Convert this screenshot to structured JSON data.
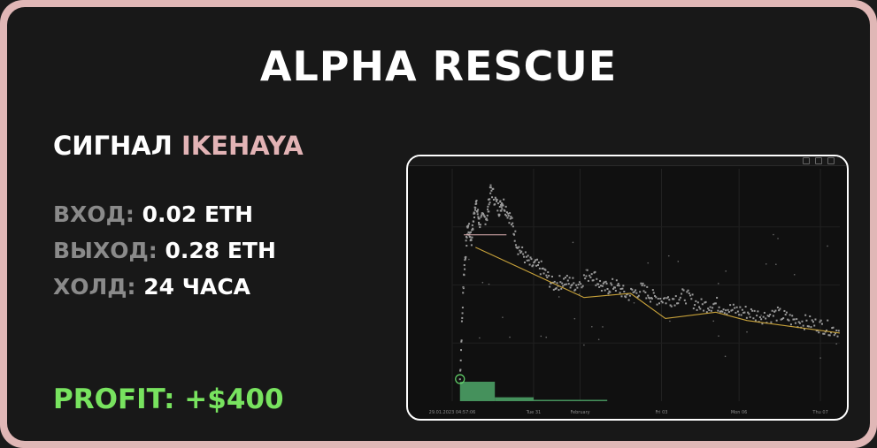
{
  "title": "ALPHA RESCUE",
  "signal": {
    "prefix": "СИГНАЛ",
    "name": "IKEHAYA"
  },
  "stats": [
    {
      "key": "ВХОД:",
      "value": "0.02 ETH"
    },
    {
      "key": "ВЫХОД:",
      "value": "0.28 ETH"
    },
    {
      "key": "ХОЛД:",
      "value": "24 ЧАСА"
    }
  ],
  "profit": "PROFIT: +$400",
  "colors": {
    "accent_pink": "#e2b3b5",
    "profit_green": "#78e35f",
    "price_gray": "#9a9a9a",
    "ma_yellow": "#c8a23a",
    "volume_green": "#4fa86a",
    "buy_marker": "#62d46a"
  },
  "chart_data": {
    "type": "scatter",
    "x_tick_labels": [
      "29.01.2023 04:57:06",
      "Tue 31",
      "February",
      "Fri 03",
      "Mon 06",
      "Thu 07"
    ],
    "x_tick_positions": [
      0,
      0.21,
      0.33,
      0.54,
      0.74,
      0.95
    ],
    "price_series": {
      "points_relative": [
        [
          0.02,
          0.05
        ],
        [
          0.03,
          0.55
        ],
        [
          0.04,
          0.78
        ],
        [
          0.05,
          0.72
        ],
        [
          0.06,
          0.9
        ],
        [
          0.07,
          0.8
        ],
        [
          0.09,
          0.83
        ],
        [
          0.1,
          0.96
        ],
        [
          0.12,
          0.86
        ],
        [
          0.13,
          0.9
        ],
        [
          0.15,
          0.82
        ],
        [
          0.17,
          0.68
        ],
        [
          0.2,
          0.6
        ],
        [
          0.23,
          0.58
        ],
        [
          0.26,
          0.5
        ],
        [
          0.29,
          0.52
        ],
        [
          0.32,
          0.5
        ],
        [
          0.36,
          0.56
        ],
        [
          0.39,
          0.48
        ],
        [
          0.42,
          0.5
        ],
        [
          0.45,
          0.45
        ],
        [
          0.49,
          0.48
        ],
        [
          0.52,
          0.44
        ],
        [
          0.56,
          0.43
        ],
        [
          0.6,
          0.45
        ],
        [
          0.64,
          0.4
        ],
        [
          0.68,
          0.41
        ],
        [
          0.72,
          0.38
        ],
        [
          0.76,
          0.37
        ],
        [
          0.8,
          0.35
        ],
        [
          0.84,
          0.36
        ],
        [
          0.88,
          0.33
        ],
        [
          0.92,
          0.32
        ],
        [
          0.96,
          0.3
        ],
        [
          1.0,
          0.28
        ]
      ]
    },
    "moving_average": [
      [
        0.06,
        0.68
      ],
      [
        0.2,
        0.56
      ],
      [
        0.34,
        0.44
      ],
      [
        0.46,
        0.46
      ],
      [
        0.55,
        0.34
      ],
      [
        0.68,
        0.37
      ],
      [
        0.76,
        0.33
      ],
      [
        0.88,
        0.3
      ],
      [
        1.0,
        0.27
      ]
    ],
    "volume_bars": [
      {
        "x0": 0.02,
        "x1": 0.11,
        "value": 1.0
      },
      {
        "x0": 0.11,
        "x1": 0.21,
        "value": 0.2
      },
      {
        "x0": 0.21,
        "x1": 0.4,
        "value": 0.07
      }
    ]
  }
}
